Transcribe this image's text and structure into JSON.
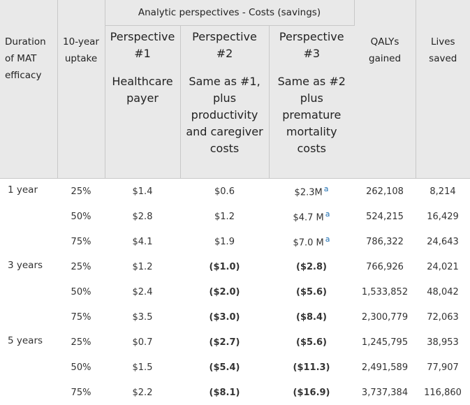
{
  "header": {
    "duration_label": [
      "Duration",
      "of MAT",
      "efficacy"
    ],
    "uptake_label": [
      "10-year",
      "uptake"
    ],
    "group_label": "Analytic perspectives - Costs (savings)",
    "perspectives": [
      {
        "title": [
          "Perspective",
          "#1"
        ],
        "desc": [
          "Healthcare",
          "payer"
        ]
      },
      {
        "title": [
          "Perspective",
          "#2"
        ],
        "desc": [
          "Same as #1,",
          "plus",
          "productivity",
          "and caregiver",
          "costs"
        ]
      },
      {
        "title": [
          "Perspective",
          "#3"
        ],
        "desc": [
          "Same as #2",
          "plus",
          "premature",
          "mortality",
          "costs"
        ]
      }
    ],
    "qalys_label": [
      "QALYs",
      "gained"
    ],
    "lives_label": [
      "Lives",
      "saved"
    ]
  },
  "footnote_marker": "a",
  "rows": [
    {
      "duration": "1 year",
      "uptake": "25%",
      "p1": "$1.4",
      "p2": "$0.6",
      "p3": "$2.3M",
      "p3_note": true,
      "qalys": "262,108",
      "lives": "8,214",
      "bold": false
    },
    {
      "duration": "",
      "uptake": "50%",
      "p1": "$2.8",
      "p2": "$1.2",
      "p3": "$4.7 M",
      "p3_note": true,
      "qalys": "524,215",
      "lives": "16,429",
      "bold": false
    },
    {
      "duration": "",
      "uptake": "75%",
      "p1": "$4.1",
      "p2": "$1.9",
      "p3": "$7.0 M",
      "p3_note": true,
      "qalys": "786,322",
      "lives": "24,643",
      "bold": false
    },
    {
      "duration": "3 years",
      "uptake": "25%",
      "p1": "$1.2",
      "p2": "($1.0)",
      "p3": "($2.8)",
      "p3_note": false,
      "qalys": "766,926",
      "lives": "24,021",
      "bold": true
    },
    {
      "duration": "",
      "uptake": "50%",
      "p1": "$2.4",
      "p2": "($2.0)",
      "p3": "($5.6)",
      "p3_note": false,
      "qalys": "1,533,852",
      "lives": "48,042",
      "bold": true
    },
    {
      "duration": "",
      "uptake": "75%",
      "p1": "$3.5",
      "p2": "($3.0)",
      "p3": "($8.4)",
      "p3_note": false,
      "qalys": "2,300,779",
      "lives": "72,063",
      "bold": true
    },
    {
      "duration": "5 years",
      "uptake": "25%",
      "p1": "$0.7",
      "p2": "($2.7)",
      "p3": "($5.6)",
      "p3_note": false,
      "qalys": "1,245,795",
      "lives": "38,953",
      "bold": true
    },
    {
      "duration": "",
      "uptake": "50%",
      "p1": "$1.5",
      "p2": "($5.4)",
      "p3": "($11.3)",
      "p3_note": false,
      "qalys": "2,491,589",
      "lives": "77,907",
      "bold": true
    },
    {
      "duration": "",
      "uptake": "75%",
      "p1": "$2.2",
      "p2": "($8.1)",
      "p3": "($16.9)",
      "p3_note": false,
      "qalys": "3,737,384",
      "lives": "116,860",
      "bold": true
    }
  ]
}
